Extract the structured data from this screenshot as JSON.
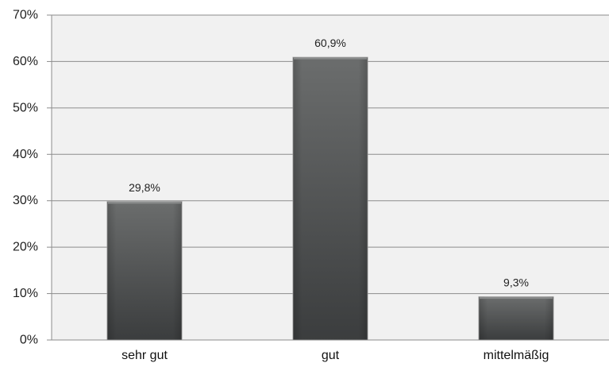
{
  "chart_data": {
    "type": "bar",
    "title": "",
    "xlabel": "",
    "ylabel": "",
    "categories": [
      "sehr gut",
      "gut",
      "mittelmäßig"
    ],
    "values": [
      29.8,
      60.9,
      9.3
    ],
    "data_labels": [
      "29,8%",
      "60,9%",
      "9,3%"
    ],
    "ylim": [
      0,
      70
    ],
    "y_ticks": [
      0,
      10,
      20,
      30,
      40,
      50,
      60,
      70
    ],
    "y_tick_labels": [
      "0%",
      "10%",
      "20%",
      "30%",
      "40%",
      "50%",
      "60%",
      "70%"
    ],
    "grid": true,
    "legend": "none",
    "colors": {
      "plot_background": "#f1f1f1",
      "gridline": "#8c8c8c",
      "bar_top": "#6b6d6d",
      "bar_bottom": "#3b3d3e",
      "bar_edge": "#9a9a9a"
    }
  }
}
